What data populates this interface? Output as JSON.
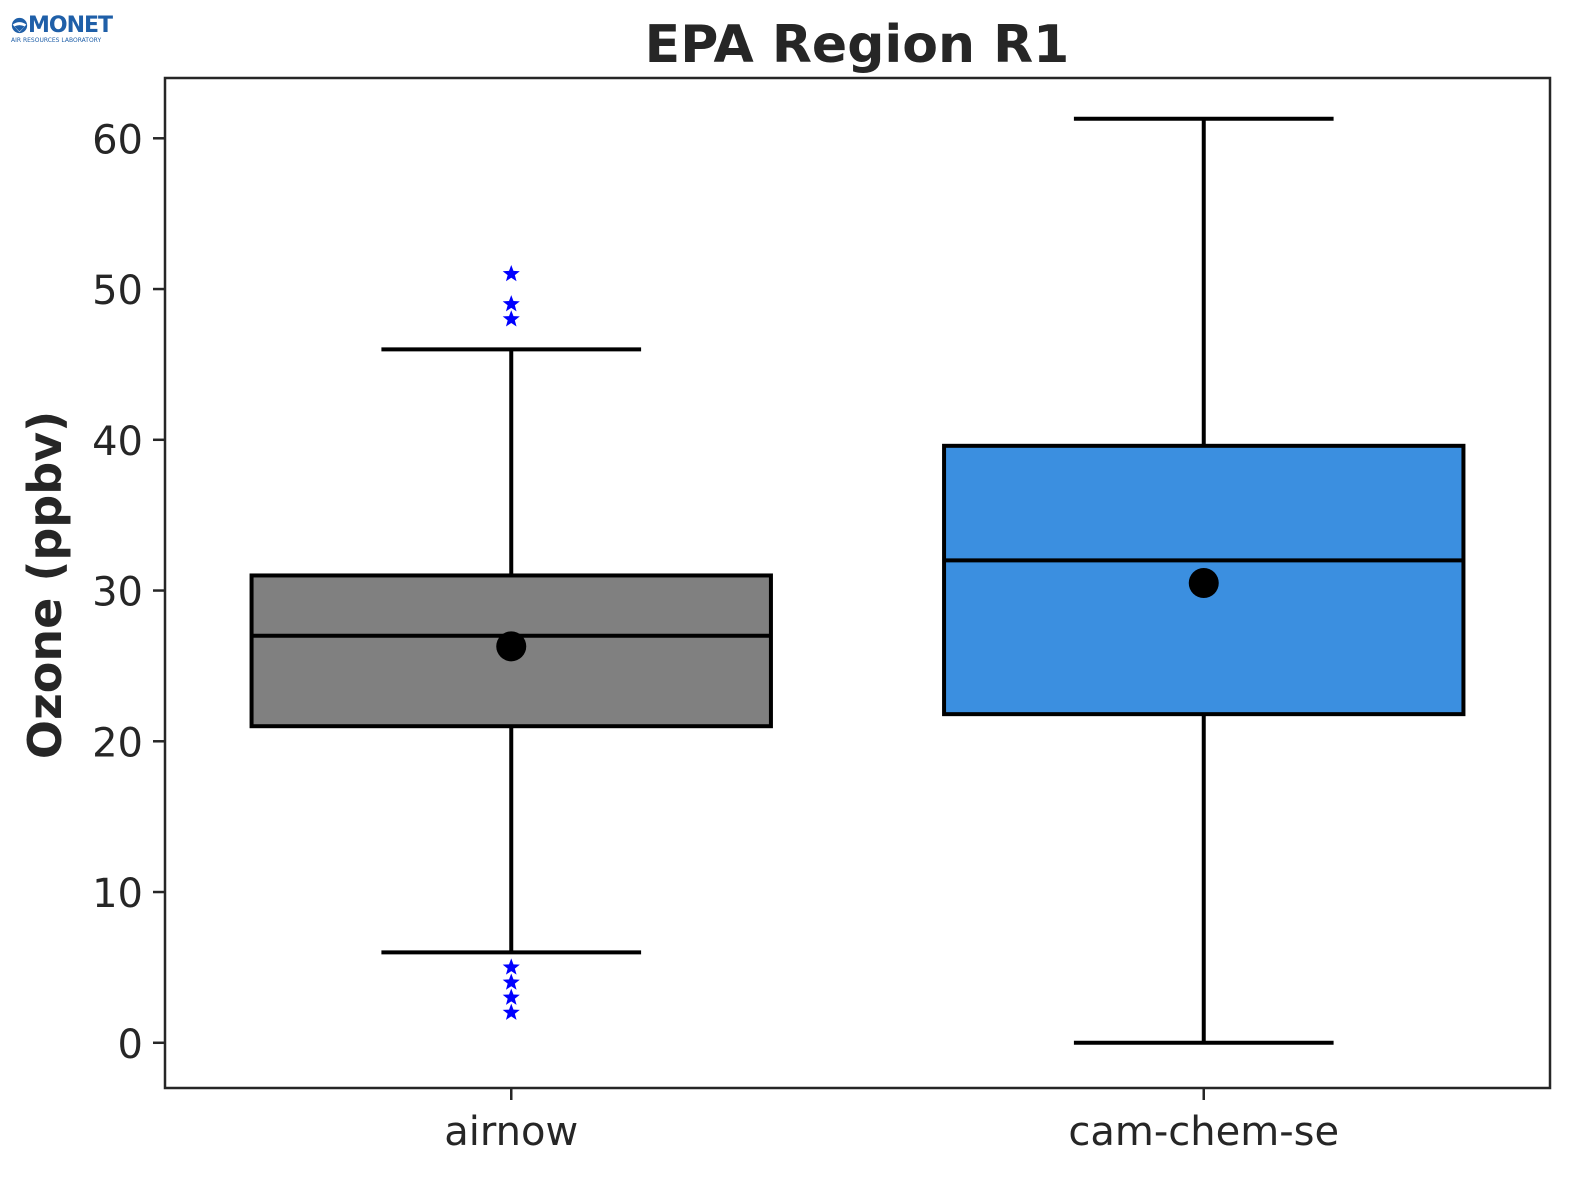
{
  "logo": {
    "name": "MONET",
    "subtitle": "AIR RESOURCES LABORATORY"
  },
  "chart_data": {
    "type": "box",
    "title": "EPA Region R1",
    "xlabel": "",
    "ylabel": "Ozone (ppbv)",
    "ylim": [
      -3,
      64
    ],
    "yticks": [
      0,
      10,
      20,
      30,
      40,
      50,
      60
    ],
    "categories": [
      "airnow",
      "cam-chem-se"
    ],
    "grid": false,
    "boxes": [
      {
        "category": "airnow",
        "color": "#808080",
        "whisker_low": 6,
        "q1": 21,
        "median": 27,
        "q3": 31,
        "whisker_high": 46,
        "mean": 26.3,
        "outliers": [
          2,
          3,
          4,
          5,
          48,
          49,
          51
        ],
        "outlier_color": "#0000ff",
        "outlier_marker": "star"
      },
      {
        "category": "cam-chem-se",
        "color": "#3b8fe0",
        "whisker_low": 0,
        "q1": 21.8,
        "median": 32,
        "q3": 39.6,
        "whisker_high": 61.3,
        "mean": 30.5,
        "outliers": [],
        "outlier_color": "#0000ff",
        "outlier_marker": "star"
      }
    ]
  }
}
